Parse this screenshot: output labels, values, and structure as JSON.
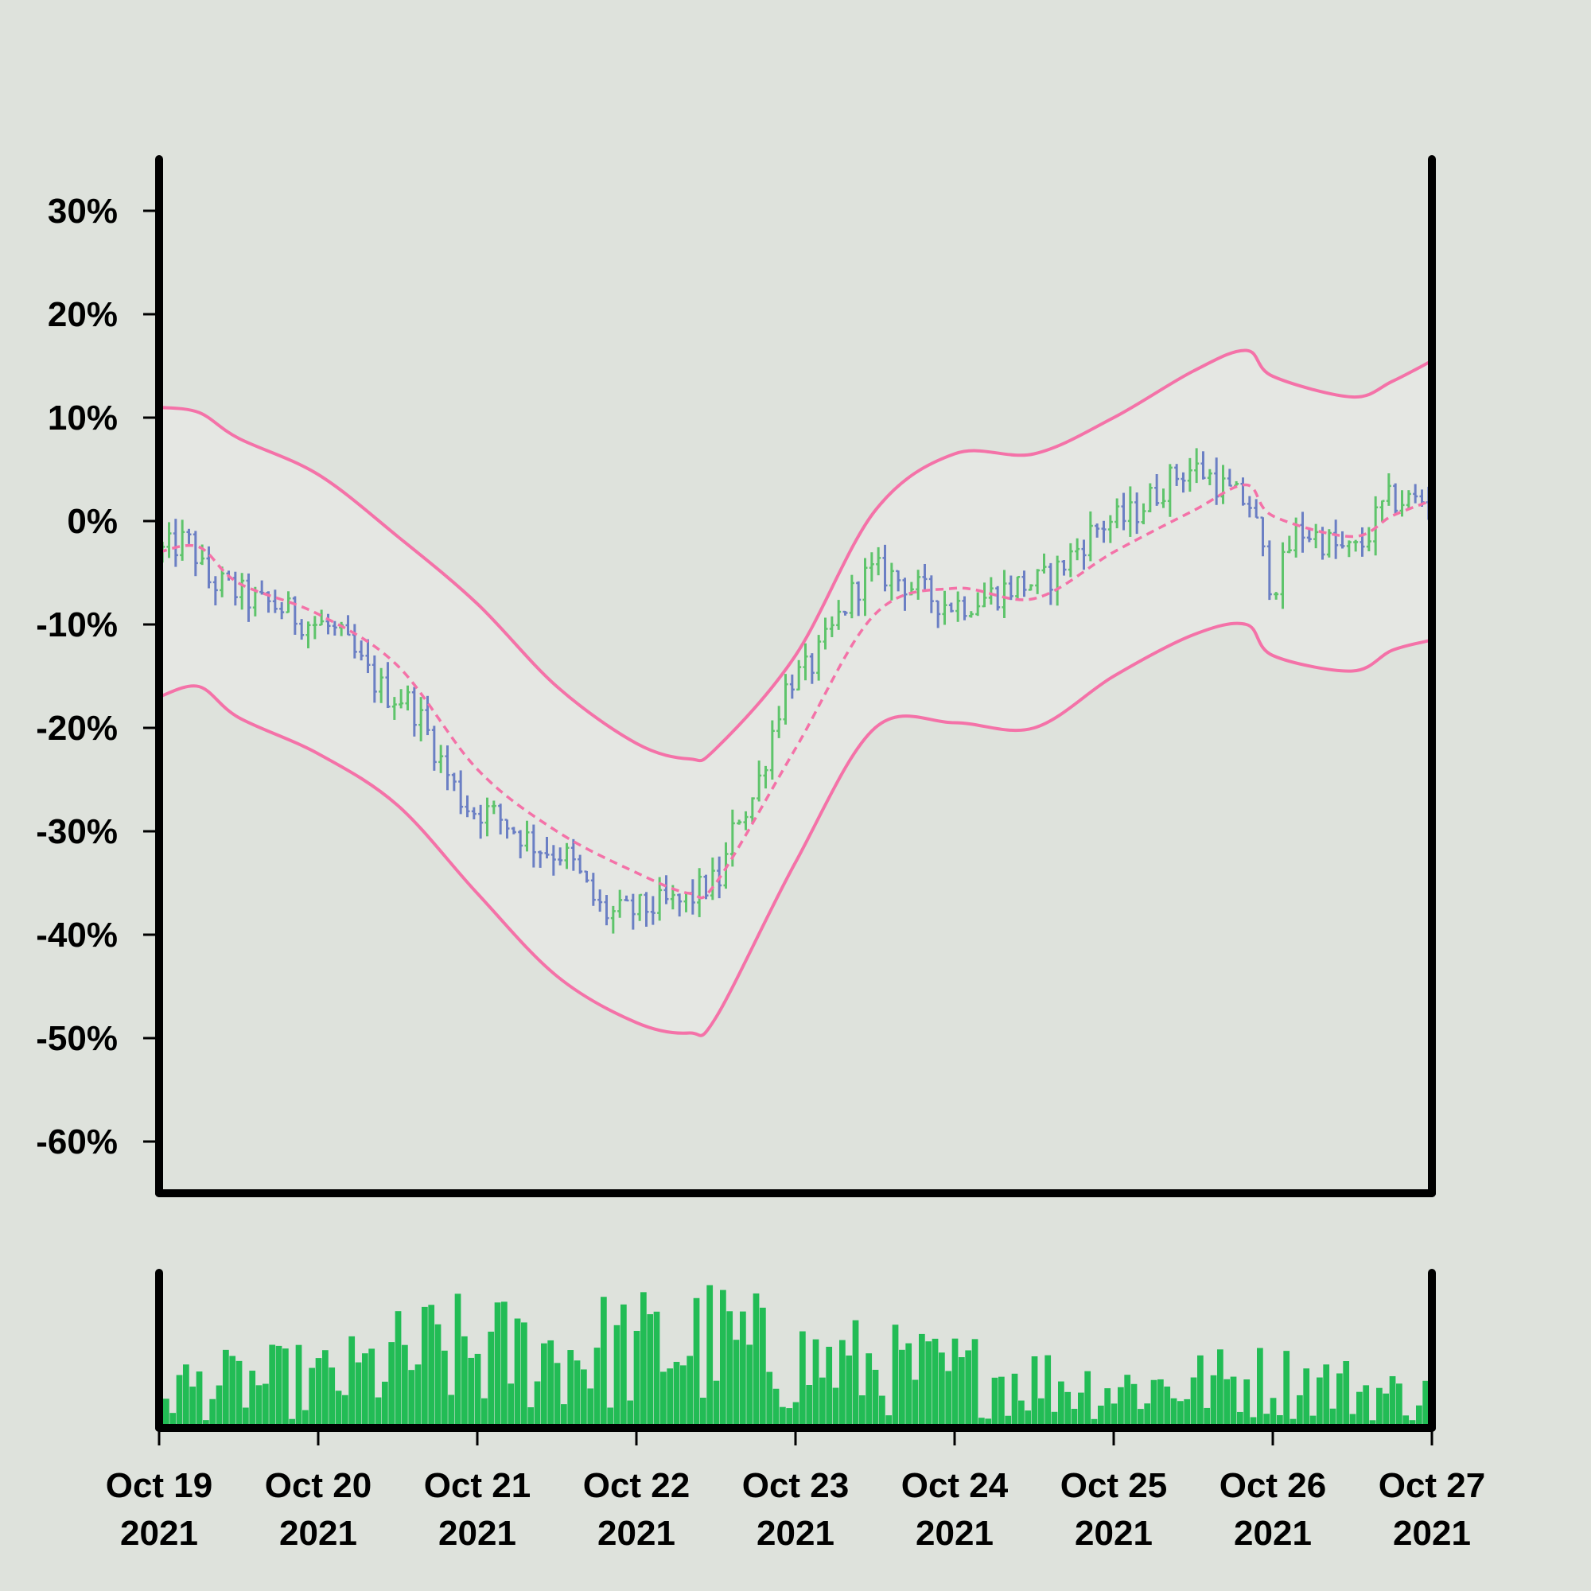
{
  "chart_data": {
    "type": "ohlc",
    "title": "",
    "xlabel": "",
    "ylabel": "",
    "y_unit": "%",
    "ylim": [
      -65,
      35
    ],
    "yticks": [
      30,
      20,
      10,
      0,
      -10,
      -20,
      -30,
      -40,
      -50,
      -60
    ],
    "ytick_labels": [
      "30%",
      "20%",
      "10%",
      "0%",
      "-10%",
      "-20%",
      "-30%",
      "-40%",
      "-50%",
      "-60%"
    ],
    "xlim": [
      "2021-10-19",
      "2021-10-27"
    ],
    "xticks": [
      {
        "date": "2021-10-19",
        "line1": "Oct 19",
        "line2": "2021"
      },
      {
        "date": "2021-10-20",
        "line1": "Oct 20",
        "line2": "2021"
      },
      {
        "date": "2021-10-21",
        "line1": "Oct 21",
        "line2": "2021"
      },
      {
        "date": "2021-10-22",
        "line1": "Oct 22",
        "line2": "2021"
      },
      {
        "date": "2021-10-23",
        "line1": "Oct 23",
        "line2": "2021"
      },
      {
        "date": "2021-10-24",
        "line1": "Oct 24",
        "line2": "2021"
      },
      {
        "date": "2021-10-25",
        "line1": "Oct 25",
        "line2": "2021"
      },
      {
        "date": "2021-10-26",
        "line1": "Oct 26",
        "line2": "2021"
      },
      {
        "date": "2021-10-27",
        "line1": "Oct 27",
        "line2": "2021"
      }
    ],
    "bar_interval_hours": 1,
    "bars_per_day": 24,
    "close_path": [
      {
        "date": "2021-10-19T00:00",
        "value": -3
      },
      {
        "date": "2021-10-19T04:00",
        "value": -2
      },
      {
        "date": "2021-10-19T08:00",
        "value": -6
      },
      {
        "date": "2021-10-19T16:00",
        "value": -8
      },
      {
        "date": "2021-10-20T00:00",
        "value": -10
      },
      {
        "date": "2021-10-20T12:00",
        "value": -17
      },
      {
        "date": "2021-10-21T00:00",
        "value": -28
      },
      {
        "date": "2021-10-21T12:00",
        "value": -32
      },
      {
        "date": "2021-10-21T20:00",
        "value": -38
      },
      {
        "date": "2021-10-22T06:00",
        "value": -37
      },
      {
        "date": "2021-10-22T12:00",
        "value": -35
      },
      {
        "date": "2021-10-22T16:00",
        "value": -28
      },
      {
        "date": "2021-10-23T00:00",
        "value": -15
      },
      {
        "date": "2021-10-23T12:00",
        "value": -5
      },
      {
        "date": "2021-10-24T00:00",
        "value": -8
      },
      {
        "date": "2021-10-24T12:00",
        "value": -6
      },
      {
        "date": "2021-10-25T00:00",
        "value": 0
      },
      {
        "date": "2021-10-25T12:00",
        "value": 5
      },
      {
        "date": "2021-10-25T20:00",
        "value": 2
      },
      {
        "date": "2021-10-26T00:00",
        "value": -6
      },
      {
        "date": "2021-10-26T04:00",
        "value": -1
      },
      {
        "date": "2021-10-26T12:00",
        "value": -3
      },
      {
        "date": "2021-10-26T18:00",
        "value": 2
      },
      {
        "date": "2021-10-27T00:00",
        "value": 2
      }
    ],
    "bollinger": {
      "dates": [
        "2021-10-19T00:00",
        "2021-10-19T06:00",
        "2021-10-19T12:00",
        "2021-10-20T00:00",
        "2021-10-20T12:00",
        "2021-10-21T00:00",
        "2021-10-21T12:00",
        "2021-10-22T00:00",
        "2021-10-22T08:00",
        "2021-10-22T12:00",
        "2021-10-23T00:00",
        "2021-10-23T12:00",
        "2021-10-24T00:00",
        "2021-10-24T12:00",
        "2021-10-25T00:00",
        "2021-10-25T12:00",
        "2021-10-25T20:00",
        "2021-10-26T00:00",
        "2021-10-26T12:00",
        "2021-10-26T18:00",
        "2021-10-27T00:00"
      ],
      "upper": [
        11,
        10.5,
        8,
        4.5,
        -1.5,
        -8,
        -16,
        -21.5,
        -23,
        -22,
        -13,
        1,
        6.5,
        6.5,
        10,
        14.5,
        16.5,
        14,
        12,
        13.5,
        15.5
      ],
      "middle": [
        -3,
        -2.5,
        -6,
        -9,
        -14,
        -24,
        -30,
        -34,
        -36,
        -35,
        -22,
        -9,
        -6.5,
        -7.5,
        -3,
        1,
        3.5,
        0.5,
        -1.5,
        0.5,
        2
      ],
      "lower": [
        -17,
        -16,
        -19,
        -22.5,
        -27.5,
        -36,
        -44,
        -48.5,
        -49.5,
        -48,
        -33,
        -20,
        -19.5,
        -20,
        -15,
        -11,
        -10,
        -13,
        -14.5,
        -12.5,
        -11.5
      ]
    },
    "volume": {
      "ylim": [
        0,
        100
      ],
      "level_path": [
        {
          "date": "2021-10-19T00:00",
          "value": 30
        },
        {
          "date": "2021-10-20T00:00",
          "value": 35
        },
        {
          "date": "2021-10-20T18:00",
          "value": 55
        },
        {
          "date": "2021-10-21T12:00",
          "value": 55
        },
        {
          "date": "2021-10-22T00:00",
          "value": 58
        },
        {
          "date": "2021-10-22T12:00",
          "value": 62
        },
        {
          "date": "2021-10-23T00:00",
          "value": 48
        },
        {
          "date": "2021-10-24T00:00",
          "value": 40
        },
        {
          "date": "2021-10-25T00:00",
          "value": 30
        },
        {
          "date": "2021-10-26T00:00",
          "value": 35
        },
        {
          "date": "2021-10-27T00:00",
          "value": 22
        }
      ]
    },
    "grid": false,
    "legend": "none",
    "colors": {
      "up": "#5ec46b",
      "down": "#6b7fc4",
      "band": "#f472a8",
      "volume": "#22bc55",
      "background": "#dee2dc",
      "band_fill": "#e5e7e3",
      "axis": "#000000"
    }
  }
}
